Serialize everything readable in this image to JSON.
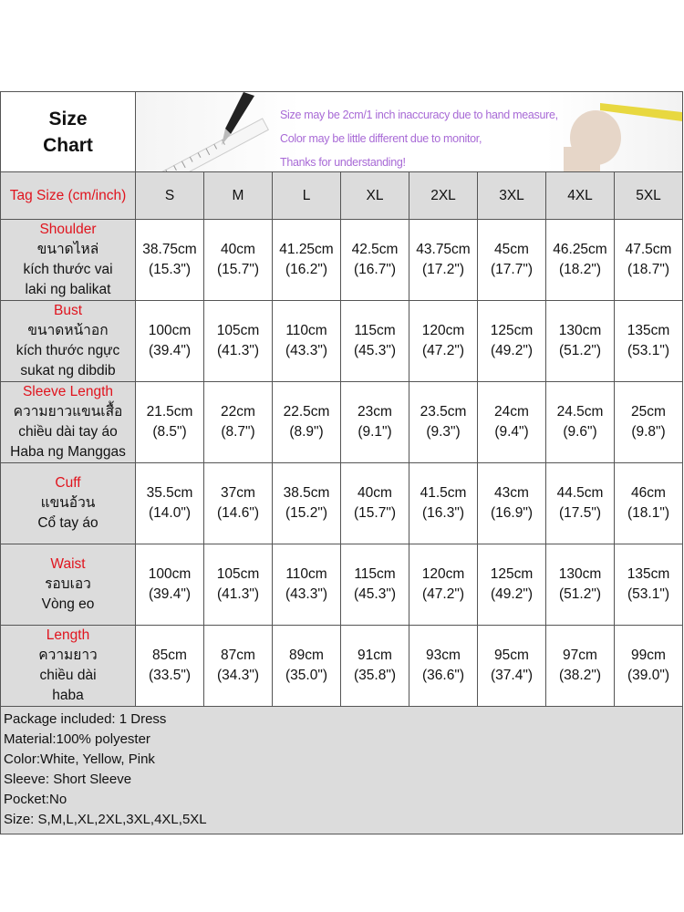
{
  "header": {
    "title_line1": "Size",
    "title_line2": "Chart",
    "notes": [
      "Size may be 2cm/1 inch inaccuracy due to hand measure,",
      "Color may be little different due to monitor,",
      "Thanks for understanding!"
    ]
  },
  "tag_label": "Tag Size (cm/inch)",
  "sizes": [
    "S",
    "M",
    "L",
    "XL",
    "2XL",
    "3XL",
    "4XL",
    "5XL"
  ],
  "rows": [
    {
      "name": "Shoulder",
      "translations": [
        "ขนาดไหล่",
        "kích thước vai",
        "laki ng balikat"
      ],
      "values": [
        [
          "38.75cm",
          "(15.3\")"
        ],
        [
          "40cm",
          "(15.7\")"
        ],
        [
          "41.25cm",
          "(16.2\")"
        ],
        [
          "42.5cm",
          "(16.7\")"
        ],
        [
          "43.75cm",
          "(17.2\")"
        ],
        [
          "45cm",
          "(17.7\")"
        ],
        [
          "46.25cm",
          "(18.2\")"
        ],
        [
          "47.5cm",
          "(18.7\")"
        ]
      ]
    },
    {
      "name": "Bust",
      "translations": [
        "ขนาดหน้าอก",
        "kích thước ngực",
        "sukat ng dibdib"
      ],
      "values": [
        [
          "100cm",
          "(39.4\")"
        ],
        [
          "105cm",
          "(41.3\")"
        ],
        [
          "110cm",
          "(43.3\")"
        ],
        [
          "115cm",
          "(45.3\")"
        ],
        [
          "120cm",
          "(47.2\")"
        ],
        [
          "125cm",
          "(49.2\")"
        ],
        [
          "130cm",
          "(51.2\")"
        ],
        [
          "135cm",
          "(53.1\")"
        ]
      ]
    },
    {
      "name": "Sleeve Length",
      "translations": [
        "ความยาวแขนเสื้อ",
        "chiều dài tay áo",
        "Haba ng Manggas"
      ],
      "values": [
        [
          "21.5cm",
          "(8.5\")"
        ],
        [
          "22cm",
          "(8.7\")"
        ],
        [
          "22.5cm",
          "(8.9\")"
        ],
        [
          "23cm",
          "(9.1\")"
        ],
        [
          "23.5cm",
          "(9.3\")"
        ],
        [
          "24cm",
          "(9.4\")"
        ],
        [
          "24.5cm",
          "(9.6\")"
        ],
        [
          "25cm",
          "(9.8\")"
        ]
      ]
    },
    {
      "name": "Cuff",
      "translations": [
        "แขนอ้วน",
        "Cổ tay áo"
      ],
      "values": [
        [
          "35.5cm",
          "(14.0\")"
        ],
        [
          "37cm",
          "(14.6\")"
        ],
        [
          "38.5cm",
          "(15.2\")"
        ],
        [
          "40cm",
          "(15.7\")"
        ],
        [
          "41.5cm",
          "(16.3\")"
        ],
        [
          "43cm",
          "(16.9\")"
        ],
        [
          "44.5cm",
          "(17.5\")"
        ],
        [
          "46cm",
          "(18.1\")"
        ]
      ]
    },
    {
      "name": "Waist",
      "translations": [
        "รอบเอว",
        "Vòng eo"
      ],
      "values": [
        [
          "100cm",
          "(39.4\")"
        ],
        [
          "105cm",
          "(41.3\")"
        ],
        [
          "110cm",
          "(43.3\")"
        ],
        [
          "115cm",
          "(45.3\")"
        ],
        [
          "120cm",
          "(47.2\")"
        ],
        [
          "125cm",
          "(49.2\")"
        ],
        [
          "130cm",
          "(51.2\")"
        ],
        [
          "135cm",
          "(53.1\")"
        ]
      ]
    },
    {
      "name": "Length",
      "translations": [
        "ความยาว",
        "chiều dài",
        "haba"
      ],
      "values": [
        [
          "85cm",
          "(33.5\")"
        ],
        [
          "87cm",
          "(34.3\")"
        ],
        [
          "89cm",
          "(35.0\")"
        ],
        [
          "91cm",
          "(35.8\")"
        ],
        [
          "93cm",
          "(36.6\")"
        ],
        [
          "95cm",
          "(37.4\")"
        ],
        [
          "97cm",
          "(38.2\")"
        ],
        [
          "99cm",
          "(39.0\")"
        ]
      ]
    }
  ],
  "footer": [
    "Package included: 1 Dress",
    "Material:100% polyester",
    "Color:White, Yellow, Pink",
    "Sleeve: Short Sleeve",
    "Pocket:No",
    "Size: S,M,L,XL,2XL,3XL,4XL,5XL"
  ],
  "colors": {
    "label_red": "#e0141e",
    "note_purple": "#a86ad6",
    "cell_grey": "#dcdcdc"
  }
}
